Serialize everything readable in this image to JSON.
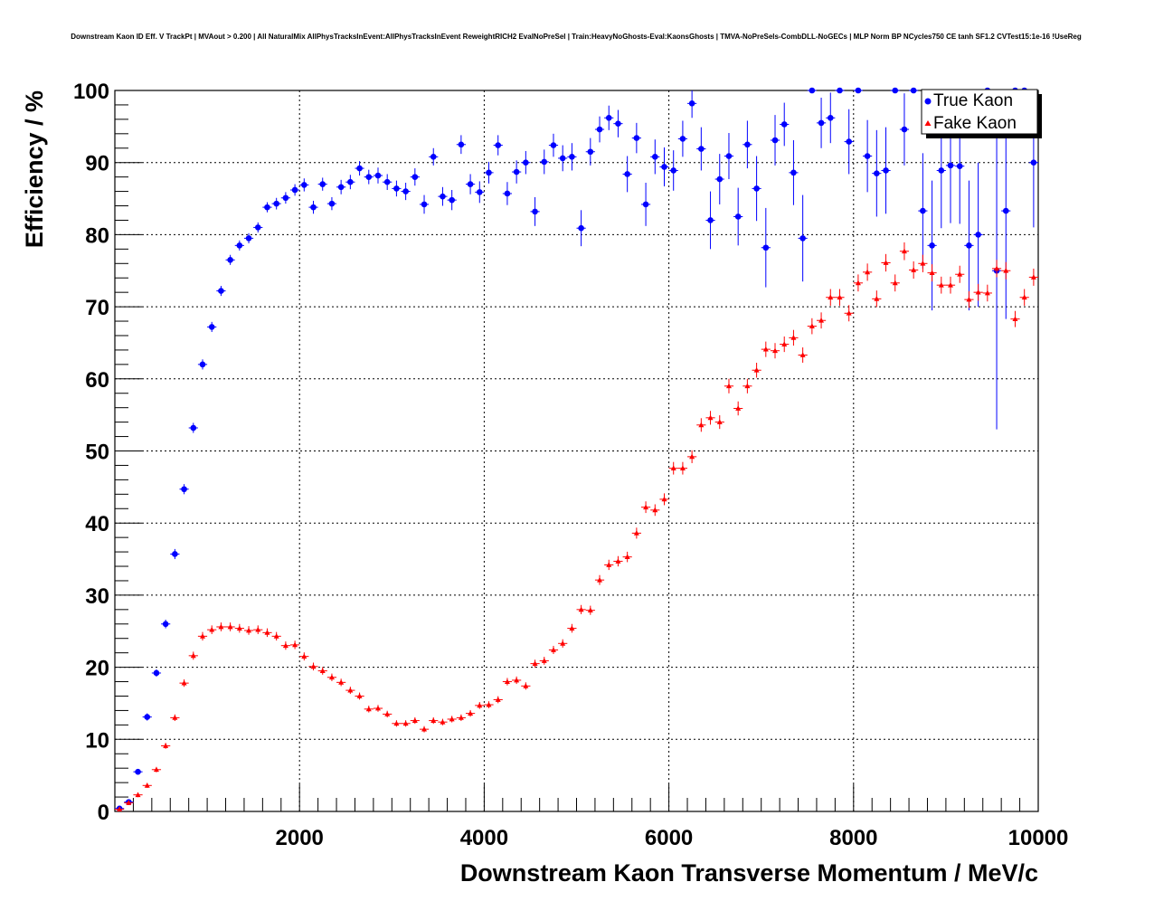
{
  "chart_data": {
    "type": "scatter",
    "title": "Downstream Kaon ID Eff. V TrackPt | MVAout > 0.200 | All NaturalMix AllPhysTracksInEvent:AllPhysTracksInEvent ReweightRICH2 EvalNoPreSel | Train:HeavyNoGhosts-Eval:KaonsGhosts | TMVA-NoPreSels-CombDLL-NoGECs | MLP Norm BP NCycles750 CE tanh SF1.2 CVTest15:1e-16 !UseReg",
    "xlabel": "Downstream Kaon Transverse Momentum / MeV/c",
    "ylabel": "Efficiency / %",
    "xlim": [
      0,
      10000
    ],
    "ylim": [
      0,
      100
    ],
    "x_ticks": [
      2000,
      4000,
      6000,
      8000,
      10000
    ],
    "y_ticks": [
      0,
      10,
      20,
      30,
      40,
      50,
      60,
      70,
      80,
      90,
      100
    ],
    "grid": true,
    "legend_position": "top-right",
    "colors": {
      "true_kaon": "#0000ff",
      "fake_kaon": "#ff0000"
    },
    "series": [
      {
        "name": "True Kaon",
        "marker": "circle",
        "x": [
          50,
          150,
          250,
          350,
          450,
          550,
          650,
          750,
          850,
          950,
          1050,
          1150,
          1250,
          1350,
          1450,
          1550,
          1650,
          1750,
          1850,
          1950,
          2050,
          2150,
          2250,
          2350,
          2450,
          2550,
          2650,
          2750,
          2850,
          2950,
          3050,
          3150,
          3250,
          3350,
          3450,
          3550,
          3650,
          3750,
          3850,
          3950,
          4050,
          4150,
          4250,
          4350,
          4450,
          4550,
          4650,
          4750,
          4850,
          4950,
          5050,
          5150,
          5250,
          5350,
          5450,
          5550,
          5650,
          5750,
          5850,
          5950,
          6050,
          6150,
          6250,
          6350,
          6450,
          6550,
          6650,
          6750,
          6850,
          6950,
          7050,
          7150,
          7250,
          7350,
          7450,
          7550,
          7650,
          7750,
          7850,
          7950,
          8050,
          8150,
          8250,
          8350,
          8450,
          8550,
          8650,
          8750,
          8850,
          8950,
          9050,
          9150,
          9250,
          9350,
          9450,
          9550,
          9650,
          9750,
          9850,
          9950
        ],
        "y": [
          0.4,
          1.3,
          5.5,
          13.1,
          19.2,
          26.0,
          35.7,
          44.7,
          53.2,
          62.0,
          67.2,
          72.2,
          76.5,
          78.5,
          79.5,
          81.0,
          83.8,
          84.3,
          85.1,
          86.2,
          86.9,
          83.8,
          87.0,
          84.3,
          86.6,
          87.3,
          89.2,
          88.0,
          88.2,
          87.3,
          86.4,
          86.0,
          88.0,
          84.2,
          90.8,
          85.3,
          84.8,
          92.5,
          87.0,
          85.9,
          88.6,
          92.4,
          85.7,
          88.7,
          90.0,
          83.2,
          90.1,
          92.4,
          90.6,
          90.8,
          80.9,
          91.5,
          94.6,
          96.2,
          95.4,
          88.4,
          93.4,
          84.2,
          90.8,
          89.4,
          88.9,
          93.3,
          98.2,
          91.9,
          82.0,
          87.7,
          90.9,
          82.5,
          92.5,
          86.4,
          78.2,
          93.1,
          95.3,
          88.6,
          79.5,
          100,
          95.5,
          96.2,
          100,
          92.9,
          100,
          90.9,
          88.5,
          88.9,
          100,
          94.6,
          100,
          83.3,
          78.5,
          88.9,
          89.6,
          89.5,
          78.5,
          80.0,
          100,
          75.0,
          83.3,
          100,
          100,
          90.0
        ],
        "yerr": [
          0.1,
          0.2,
          0.3,
          0.5,
          0.5,
          0.6,
          0.7,
          0.7,
          0.7,
          0.7,
          0.7,
          0.7,
          0.7,
          0.7,
          0.7,
          0.7,
          0.7,
          0.8,
          0.8,
          0.8,
          0.9,
          0.9,
          0.9,
          0.9,
          1.0,
          1.0,
          1.0,
          1.0,
          1.1,
          1.1,
          1.1,
          1.2,
          1.2,
          1.3,
          1.2,
          1.3,
          1.4,
          1.3,
          1.4,
          1.5,
          1.5,
          1.4,
          1.6,
          1.6,
          1.6,
          2.0,
          1.7,
          1.6,
          1.8,
          1.9,
          2.5,
          1.9,
          1.8,
          1.7,
          1.9,
          2.5,
          2.1,
          3.0,
          2.4,
          2.7,
          2.8,
          2.5,
          2.0,
          3.0,
          4.0,
          3.5,
          3.2,
          4.0,
          3.3,
          4.5,
          5.5,
          3.5,
          3.0,
          4.5,
          6.0,
          0,
          3.5,
          3.5,
          0,
          4.5,
          0,
          5.0,
          6.0,
          6.0,
          0,
          5.0,
          0,
          8.0,
          9.0,
          8.0,
          8.0,
          8.0,
          9.0,
          10.0,
          0,
          22.0,
          15.0,
          0,
          0,
          9.0
        ]
      },
      {
        "name": "Fake Kaon",
        "marker": "triangle",
        "x": [
          50,
          150,
          250,
          350,
          450,
          550,
          650,
          750,
          850,
          950,
          1050,
          1150,
          1250,
          1350,
          1450,
          1550,
          1650,
          1750,
          1850,
          1950,
          2050,
          2150,
          2250,
          2350,
          2450,
          2550,
          2650,
          2750,
          2850,
          2950,
          3050,
          3150,
          3250,
          3350,
          3450,
          3550,
          3650,
          3750,
          3850,
          3950,
          4050,
          4150,
          4250,
          4350,
          4450,
          4550,
          4650,
          4750,
          4850,
          4950,
          5050,
          5150,
          5250,
          5350,
          5450,
          5550,
          5650,
          5750,
          5850,
          5950,
          6050,
          6150,
          6250,
          6350,
          6450,
          6550,
          6650,
          6750,
          6850,
          6950,
          7050,
          7150,
          7250,
          7350,
          7450,
          7550,
          7650,
          7750,
          7850,
          7950,
          8050,
          8150,
          8250,
          8350,
          8450,
          8550,
          8650,
          8750,
          8850,
          8950,
          9050,
          9150,
          9250,
          9350,
          9450,
          9550,
          9650,
          9750,
          9850,
          9950
        ],
        "y": [
          0.3,
          1.2,
          2.3,
          3.6,
          5.8,
          9.1,
          13.0,
          17.8,
          21.6,
          24.3,
          25.2,
          25.6,
          25.6,
          25.4,
          25.1,
          25.2,
          24.8,
          24.3,
          23.0,
          23.1,
          21.5,
          20.1,
          19.5,
          18.6,
          17.9,
          16.8,
          16.0,
          14.2,
          14.3,
          13.5,
          12.2,
          12.2,
          12.6,
          11.4,
          12.6,
          12.4,
          12.8,
          13.0,
          13.6,
          14.7,
          14.8,
          15.5,
          18.0,
          18.2,
          17.4,
          20.5,
          20.9,
          22.4,
          23.3,
          25.4,
          28.0,
          27.9,
          32.1,
          34.2,
          34.7,
          35.3,
          38.6,
          42.2,
          41.8,
          43.3,
          47.6,
          47.6,
          49.2,
          53.6,
          54.6,
          54.0,
          59.0,
          55.9,
          59.0,
          61.2,
          64.1,
          63.9,
          64.8,
          65.7,
          63.3,
          67.3,
          68.1,
          71.3,
          71.3,
          69.1,
          73.3,
          74.8,
          71.1,
          76.1,
          73.3,
          77.7,
          75.1,
          76.0,
          74.7,
          73.0,
          73.0,
          74.5,
          71.0,
          72.0,
          71.9,
          75.3,
          75.0,
          68.3,
          71.3,
          74.1
        ]
      }
    ]
  }
}
